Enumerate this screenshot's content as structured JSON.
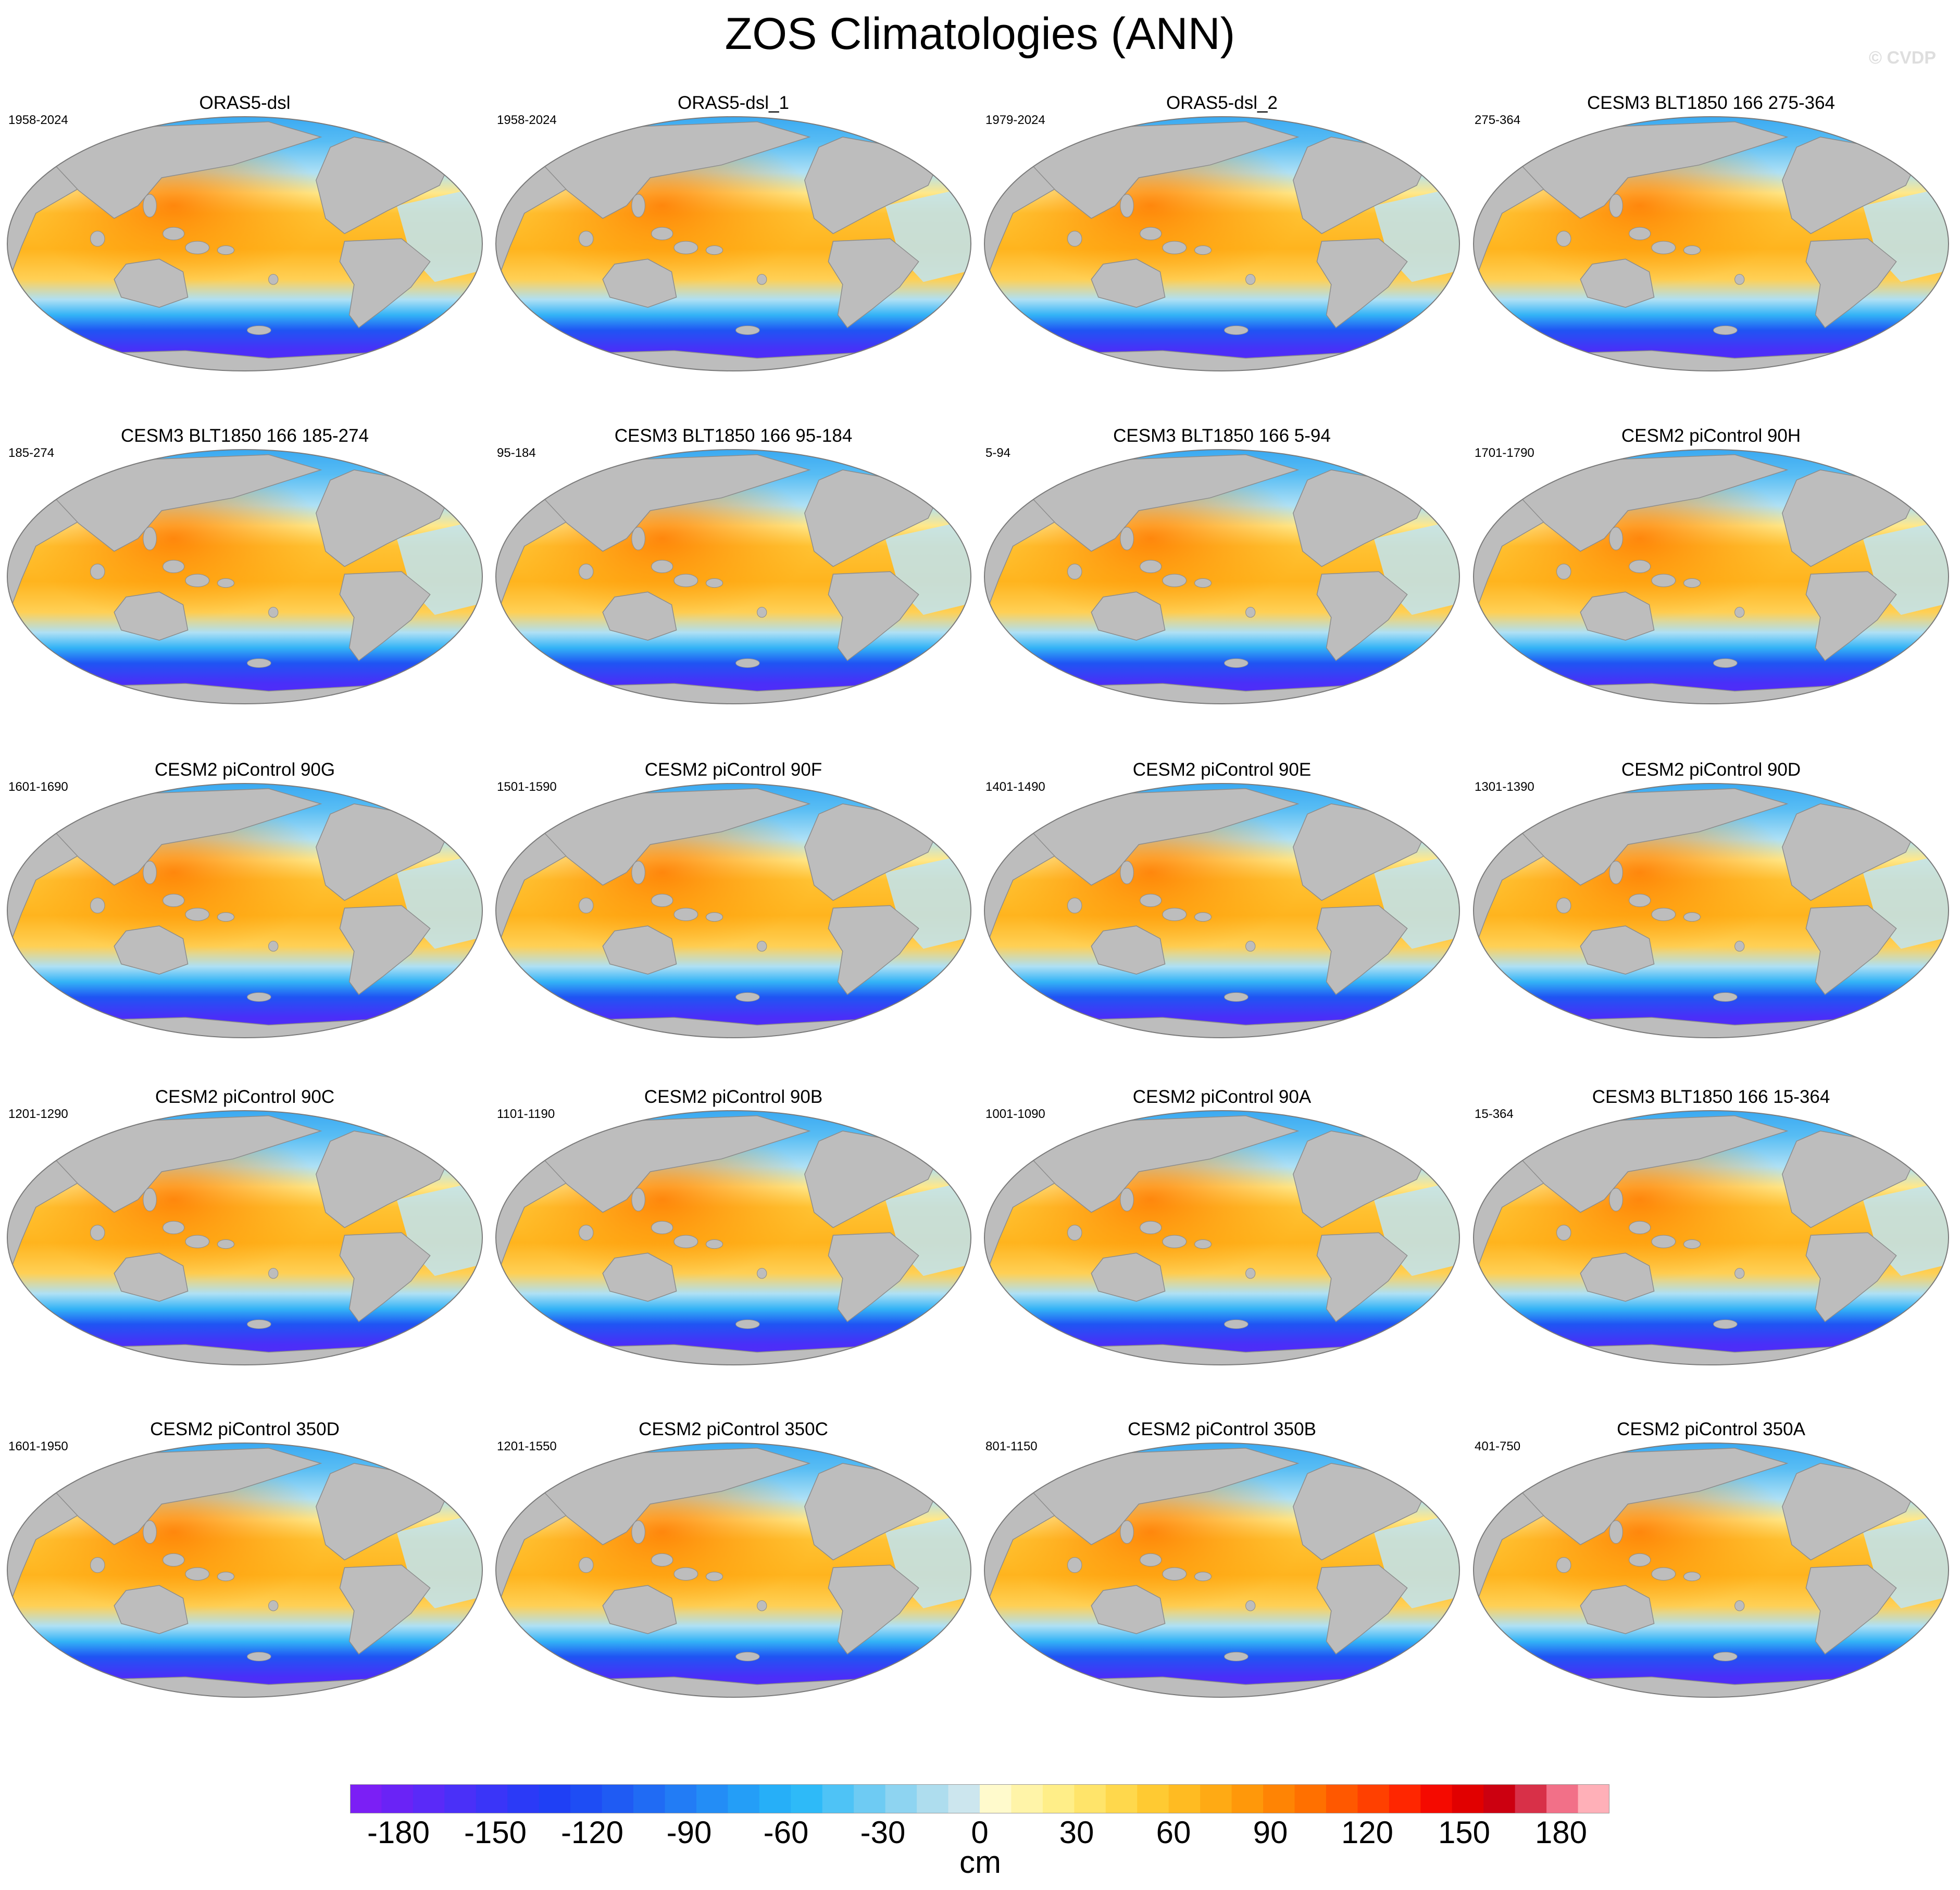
{
  "title": "ZOS Climatologies (ANN)",
  "credit": "© CVDP",
  "variable": "ZOS",
  "season": "ANN",
  "panels": [
    {
      "name": "ORAS5-dsl",
      "years": "1958-2024"
    },
    {
      "name": "ORAS5-dsl_1",
      "years": "1958-2024"
    },
    {
      "name": "ORAS5-dsl_2",
      "years": "1979-2024"
    },
    {
      "name": "CESM3 BLT1850 166 275-364",
      "years": "275-364"
    },
    {
      "name": "CESM3 BLT1850 166 185-274",
      "years": "185-274"
    },
    {
      "name": "CESM3 BLT1850 166 95-184",
      "years": "95-184"
    },
    {
      "name": "CESM3 BLT1850 166 5-94",
      "years": "5-94"
    },
    {
      "name": "CESM2 piControl 90H",
      "years": "1701-1790"
    },
    {
      "name": "CESM2 piControl 90G",
      "years": "1601-1690"
    },
    {
      "name": "CESM2 piControl 90F",
      "years": "1501-1590"
    },
    {
      "name": "CESM2 piControl 90E",
      "years": "1401-1490"
    },
    {
      "name": "CESM2 piControl 90D",
      "years": "1301-1390"
    },
    {
      "name": "CESM2 piControl 90C",
      "years": "1201-1290"
    },
    {
      "name": "CESM2 piControl 90B",
      "years": "1101-1190"
    },
    {
      "name": "CESM2 piControl 90A",
      "years": "1001-1090"
    },
    {
      "name": "CESM3 BLT1850 166 15-364",
      "years": "15-364"
    },
    {
      "name": "CESM2 piControl 350D",
      "years": "1601-1950"
    },
    {
      "name": "CESM2 piControl 350C",
      "years": "1201-1550"
    },
    {
      "name": "CESM2 piControl 350B",
      "years": "801-1150"
    },
    {
      "name": "CESM2 piControl 350A",
      "years": "401-750"
    }
  ],
  "colorbar": {
    "unit": "cm",
    "min": -195,
    "max": 195,
    "step": 10,
    "tick_values": [
      -180,
      -150,
      -120,
      -90,
      -60,
      -30,
      0,
      30,
      60,
      90,
      120,
      150,
      180
    ],
    "tick_labels": [
      "-180",
      "-150",
      "-120",
      "-90",
      "-60",
      "-30",
      "0",
      "30",
      "60",
      "90",
      "120",
      "150",
      "180"
    ],
    "colors": [
      "#7B1FF5",
      "#6A23F6",
      "#5A2AF8",
      "#4A30F8",
      "#3A35F8",
      "#2B3AF7",
      "#1F40F5",
      "#1E4DF4",
      "#1F5BF3",
      "#206BF4",
      "#227CF5",
      "#238DF6",
      "#249EF7",
      "#26AFF8",
      "#2EBAF8",
      "#4EC3F6",
      "#6ECBF3",
      "#8ED4F1",
      "#AEDDEE",
      "#CCE6EE",
      "#FFFACC",
      "#FFF4A8",
      "#FFEE88",
      "#FFE46A",
      "#FFD84C",
      "#FFCA32",
      "#FFBB22",
      "#FFAA14",
      "#FF980A",
      "#FF8404",
      "#FF7000",
      "#FF5800",
      "#FF4000",
      "#FF2600",
      "#F50A00",
      "#E10000",
      "#CC0010",
      "#D83048",
      "#F27088",
      "#FFB0B8"
    ]
  }
}
